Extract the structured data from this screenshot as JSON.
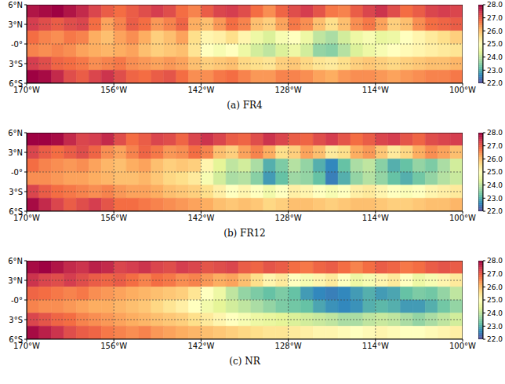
{
  "chart_data": [
    {
      "type": "heatmap",
      "title": "(a) FR4",
      "x_edges": [
        -170,
        -168,
        -166,
        -164,
        -162,
        -160,
        -158,
        -156,
        -154,
        -152,
        -150,
        -148,
        -146,
        -144,
        -142,
        -140,
        -138,
        -136,
        -134,
        -132,
        -130,
        -128,
        -126,
        -124,
        -122,
        -120,
        -118,
        -116,
        -114,
        -112,
        -110,
        -108,
        -106,
        -104,
        -102,
        -100
      ],
      "y_edges": [
        6,
        4,
        2,
        0,
        -2,
        -4,
        -6
      ],
      "cells": [
        [
          27.8,
          27.9,
          28,
          27.8,
          27.6,
          27.3,
          27.0,
          26.8,
          27.0,
          27.2,
          27.4,
          27.2,
          26.8,
          26.6,
          27.0,
          27.3,
          27.4,
          27.2,
          26.8,
          26.5,
          26.9,
          27.2,
          27.4,
          27.1,
          26.7,
          26.6,
          27.0,
          27.3,
          27.5,
          27.2,
          26.8,
          27.0,
          27.3,
          27.4,
          27.3
        ],
        [
          27.4,
          27.2,
          27.0,
          27.2,
          27.3,
          26.8,
          26.3,
          26.6,
          27.0,
          26.8,
          26.4,
          26.6,
          26.9,
          26.2,
          26.0,
          26.4,
          26.8,
          26.6,
          26.0,
          25.8,
          26.3,
          26.7,
          26.5,
          26.0,
          25.6,
          26.0,
          26.5,
          26.7,
          26.3,
          25.8,
          26.0,
          26.5,
          26.8,
          26.9,
          27.0
        ],
        [
          26.8,
          26.6,
          26.5,
          26.7,
          26.6,
          26.2,
          26.0,
          26.3,
          26.5,
          26.2,
          25.8,
          26.0,
          26.3,
          25.6,
          25.2,
          25.3,
          25.6,
          25.2,
          24.6,
          24.3,
          24.8,
          25.0,
          24.6,
          24.0,
          23.8,
          24.2,
          24.6,
          24.8,
          24.5,
          24.6,
          25.0,
          25.2,
          25.4,
          25.6,
          25.8
        ],
        [
          26.6,
          26.5,
          26.6,
          26.5,
          26.3,
          26.2,
          26.1,
          26.2,
          26.3,
          26.0,
          25.8,
          25.9,
          26.0,
          25.5,
          25.0,
          24.8,
          25.0,
          24.6,
          24.2,
          24.0,
          24.3,
          24.6,
          24.2,
          23.6,
          23.5,
          23.9,
          24.3,
          24.6,
          24.8,
          25.0,
          25.1,
          25.2,
          25.3,
          25.4,
          25.5
        ],
        [
          27.4,
          27.2,
          26.9,
          26.8,
          26.7,
          26.5,
          26.6,
          26.7,
          26.5,
          26.4,
          26.3,
          26.4,
          26.3,
          26.0,
          25.8,
          25.9,
          26.0,
          25.7,
          25.6,
          25.5,
          25.8,
          25.9,
          25.7,
          25.5,
          25.4,
          25.6,
          25.8,
          25.9,
          25.8,
          25.7,
          25.8,
          25.9,
          26.0,
          26.0,
          26.1
        ],
        [
          28.0,
          27.9,
          27.6,
          27.2,
          27.0,
          27.3,
          27.5,
          27.2,
          26.9,
          26.8,
          27.0,
          27.1,
          26.8,
          26.5,
          26.5,
          26.7,
          26.8,
          26.6,
          26.4,
          26.4,
          26.6,
          26.6,
          26.5,
          26.3,
          26.2,
          26.4,
          26.5,
          26.5,
          26.4,
          26.3,
          26.4,
          26.5,
          26.6,
          26.6,
          26.7
        ]
      ],
      "xlim": [
        -170,
        -100
      ],
      "ylim": [
        -6,
        6
      ],
      "xticks": [
        {
          "value": -170,
          "label": "170°W"
        },
        {
          "value": -156,
          "label": "156°W"
        },
        {
          "value": -142,
          "label": "142°W"
        },
        {
          "value": -128,
          "label": "128°W"
        },
        {
          "value": -114,
          "label": "114°W"
        },
        {
          "value": -100,
          "label": "100°W"
        }
      ],
      "yticks": [
        {
          "value": -6,
          "label": "6°S"
        },
        {
          "value": -3,
          "label": "3°S"
        },
        {
          "value": 0,
          "label": "-0°"
        },
        {
          "value": 3,
          "label": "3°N"
        },
        {
          "value": 6,
          "label": "6°N"
        }
      ],
      "grid": true,
      "colorbar": {
        "lim": [
          22,
          28
        ],
        "ticks": [
          {
            "value": 22,
            "label": "22.0"
          },
          {
            "value": 23,
            "label": "23.0"
          },
          {
            "value": 24,
            "label": "24.0"
          },
          {
            "value": 25,
            "label": "25.0"
          },
          {
            "value": 26,
            "label": "26.0"
          },
          {
            "value": 27,
            "label": "27.0"
          },
          {
            "value": 28,
            "label": "28.0"
          }
        ]
      }
    },
    {
      "type": "heatmap",
      "title": "(b) FR12",
      "x_edges": [
        -170,
        -168,
        -166,
        -164,
        -162,
        -160,
        -158,
        -156,
        -154,
        -152,
        -150,
        -148,
        -146,
        -144,
        -142,
        -140,
        -138,
        -136,
        -134,
        -132,
        -130,
        -128,
        -126,
        -124,
        -122,
        -120,
        -118,
        -116,
        -114,
        -112,
        -110,
        -108,
        -106,
        -104,
        -102,
        -100
      ],
      "y_edges": [
        6,
        4,
        2,
        0,
        -2,
        -4,
        -6
      ],
      "cells": [
        [
          28,
          28,
          27.9,
          27.6,
          27.3,
          27.4,
          27.6,
          27.2,
          26.8,
          27.0,
          27.3,
          27.2,
          26.9,
          27.3,
          27.5,
          27.3,
          27.0,
          26.9,
          27.2,
          27.5,
          27.3,
          27.0,
          26.9,
          27.2,
          27.4,
          27.1,
          26.8,
          27.0,
          27.3,
          27.4,
          27.1,
          26.9,
          27.2,
          27.3,
          27.4
        ],
        [
          27.3,
          27.0,
          26.8,
          27.0,
          27.2,
          26.9,
          26.5,
          26.3,
          26.6,
          26.9,
          26.7,
          26.4,
          26.5,
          26.8,
          26.6,
          26.0,
          25.8,
          26.3,
          26.6,
          26.2,
          25.6,
          25.8,
          26.3,
          26.0,
          25.4,
          25.6,
          26.2,
          26.4,
          25.9,
          25.4,
          25.7,
          26.2,
          26.5,
          26.3,
          26.0
        ],
        [
          26.8,
          26.6,
          26.5,
          26.4,
          26.5,
          26.3,
          26.1,
          26.0,
          26.2,
          26.3,
          26.0,
          25.8,
          25.9,
          25.8,
          25.2,
          24.4,
          24.0,
          24.2,
          23.8,
          23.0,
          23.4,
          23.9,
          23.6,
          23.0,
          22.6,
          23.2,
          23.8,
          24.0,
          23.5,
          23.0,
          23.2,
          23.6,
          23.4,
          23.8,
          24.2
        ],
        [
          26.5,
          26.5,
          26.4,
          26.3,
          26.3,
          26.2,
          26.1,
          26.0,
          26.0,
          26.1,
          25.9,
          25.7,
          25.6,
          25.4,
          24.8,
          24.2,
          23.8,
          23.9,
          23.5,
          22.8,
          23.2,
          23.7,
          23.6,
          23.2,
          22.5,
          23.0,
          23.6,
          23.9,
          23.6,
          23.2,
          23.0,
          23.3,
          23.6,
          23.9,
          24.1
        ],
        [
          27.3,
          27.0,
          26.8,
          26.7,
          26.6,
          26.5,
          26.6,
          26.4,
          26.3,
          26.3,
          26.2,
          26.0,
          25.9,
          25.8,
          25.6,
          25.3,
          25.0,
          25.2,
          25.0,
          24.7,
          25.0,
          25.3,
          25.2,
          25.0,
          24.8,
          25.0,
          25.3,
          25.4,
          25.2,
          25.0,
          24.9,
          25.0,
          25.2,
          25.3,
          25.4
        ],
        [
          27.9,
          27.6,
          27.3,
          27.0,
          27.2,
          27.4,
          27.1,
          26.8,
          26.8,
          26.7,
          26.6,
          26.5,
          26.4,
          26.3,
          26.2,
          26.0,
          25.9,
          26.0,
          25.9,
          25.7,
          25.8,
          26.0,
          26.0,
          25.9,
          25.8,
          25.9,
          26.0,
          26.0,
          25.9,
          25.8,
          25.8,
          25.9,
          26.0,
          26.0,
          26.1
        ]
      ],
      "xlim": [
        -170,
        -100
      ],
      "ylim": [
        -6,
        6
      ],
      "xticks": [
        {
          "value": -170,
          "label": "170°W"
        },
        {
          "value": -156,
          "label": "156°W"
        },
        {
          "value": -142,
          "label": "142°W"
        },
        {
          "value": -128,
          "label": "128°W"
        },
        {
          "value": -114,
          "label": "114°W"
        },
        {
          "value": -100,
          "label": "100°W"
        }
      ],
      "yticks": [
        {
          "value": -6,
          "label": "6°S"
        },
        {
          "value": -3,
          "label": "3°S"
        },
        {
          "value": 0,
          "label": "-0°"
        },
        {
          "value": 3,
          "label": "3°N"
        },
        {
          "value": 6,
          "label": "6°N"
        }
      ],
      "grid": true,
      "colorbar": {
        "lim": [
          22,
          28
        ],
        "ticks": [
          {
            "value": 22,
            "label": "22.0"
          },
          {
            "value": 23,
            "label": "23.0"
          },
          {
            "value": 24,
            "label": "24.0"
          },
          {
            "value": 25,
            "label": "25.0"
          },
          {
            "value": 26,
            "label": "26.0"
          },
          {
            "value": 27,
            "label": "27.0"
          },
          {
            "value": 28,
            "label": "28.0"
          }
        ]
      }
    },
    {
      "type": "heatmap",
      "title": "(c) NR",
      "x_edges": [
        -170,
        -168,
        -166,
        -164,
        -162,
        -160,
        -158,
        -156,
        -154,
        -152,
        -150,
        -148,
        -146,
        -144,
        -142,
        -140,
        -138,
        -136,
        -134,
        -132,
        -130,
        -128,
        -126,
        -124,
        -122,
        -120,
        -118,
        -116,
        -114,
        -112,
        -110,
        -108,
        -106,
        -104,
        -102,
        -100
      ],
      "y_edges": [
        6,
        4,
        2,
        0,
        -2,
        -4,
        -6
      ],
      "cells": [
        [
          27.9,
          28,
          27.8,
          27.6,
          27.5,
          27.7,
          27.6,
          27.3,
          27.4,
          27.5,
          27.3,
          27.2,
          27.4,
          27.3,
          27.1,
          27.2,
          27.3,
          27.0,
          26.9,
          27.1,
          27.0,
          26.8,
          26.7,
          26.9,
          27.0,
          26.8,
          26.6,
          26.8,
          27.0,
          26.9,
          26.7,
          26.8,
          27.0,
          27.1,
          27.0
        ],
        [
          27.5,
          27.3,
          27.2,
          27.4,
          27.2,
          27.0,
          26.9,
          27.0,
          26.8,
          26.6,
          26.8,
          26.7,
          26.5,
          26.6,
          26.4,
          26.2,
          26.3,
          26.0,
          25.6,
          25.2,
          25.4,
          25.0,
          24.8,
          25.2,
          25.4,
          25.0,
          24.6,
          24.8,
          25.2,
          25.4,
          25.0,
          24.6,
          24.8,
          25.2,
          25.4
        ],
        [
          26.9,
          26.8,
          26.7,
          26.6,
          26.7,
          26.5,
          26.4,
          26.3,
          26.2,
          26.1,
          26.0,
          25.9,
          25.8,
          25.5,
          25.0,
          24.6,
          24.0,
          23.6,
          23.4,
          23.2,
          23.4,
          23.2,
          22.8,
          22.6,
          22.5,
          22.6,
          22.8,
          23.0,
          22.8,
          22.9,
          23.2,
          23.4,
          23.3,
          23.6,
          24.0
        ],
        [
          26.6,
          26.5,
          26.5,
          26.4,
          26.3,
          26.2,
          26.2,
          26.1,
          26.0,
          25.9,
          25.7,
          25.5,
          25.3,
          25.0,
          24.7,
          24.4,
          24.2,
          24.0,
          23.8,
          23.6,
          23.4,
          23.3,
          23.2,
          22.9,
          22.7,
          22.6,
          22.7,
          23.0,
          23.1,
          23.0,
          22.8,
          22.8,
          23.0,
          23.3,
          23.6
        ],
        [
          27.3,
          27.1,
          26.9,
          26.8,
          26.6,
          26.5,
          26.4,
          26.3,
          26.2,
          26.1,
          26.0,
          25.9,
          25.8,
          25.6,
          25.4,
          25.2,
          25.0,
          24.8,
          24.6,
          24.5,
          24.4,
          24.3,
          24.2,
          24.1,
          24.0,
          23.8,
          23.8,
          24.0,
          24.1,
          24.0,
          23.8,
          23.6,
          23.8,
          24.0,
          24.2
        ],
        [
          27.9,
          27.7,
          27.5,
          27.2,
          27.0,
          26.9,
          26.7,
          26.6,
          26.5,
          26.6,
          26.4,
          26.3,
          26.2,
          26.1,
          26.0,
          25.9,
          25.8,
          25.7,
          25.6,
          25.5,
          25.5,
          25.4,
          25.3,
          25.2,
          25.2,
          25.1,
          25.0,
          25.1,
          25.2,
          25.1,
          25.0,
          25.0,
          25.1,
          25.2,
          25.3
        ]
      ],
      "xlim": [
        -170,
        -100
      ],
      "ylim": [
        -6,
        6
      ],
      "xticks": [
        {
          "value": -170,
          "label": "170°W"
        },
        {
          "value": -156,
          "label": "156°W"
        },
        {
          "value": -142,
          "label": "142°W"
        },
        {
          "value": -128,
          "label": "128°W"
        },
        {
          "value": -114,
          "label": "114°W"
        },
        {
          "value": -100,
          "label": "100°W"
        }
      ],
      "yticks": [
        {
          "value": -6,
          "label": "6°S"
        },
        {
          "value": -3,
          "label": "3°S"
        },
        {
          "value": 0,
          "label": "-0°"
        },
        {
          "value": 3,
          "label": "3°N"
        },
        {
          "value": 6,
          "label": "6°N"
        }
      ],
      "grid": true,
      "colorbar": {
        "lim": [
          22,
          28
        ],
        "ticks": [
          {
            "value": 22,
            "label": "22.0"
          },
          {
            "value": 23,
            "label": "23.0"
          },
          {
            "value": 24,
            "label": "24.0"
          },
          {
            "value": 25,
            "label": "25.0"
          },
          {
            "value": 26,
            "label": "26.0"
          },
          {
            "value": 27,
            "label": "27.0"
          },
          {
            "value": 28,
            "label": "28.0"
          }
        ]
      }
    }
  ]
}
